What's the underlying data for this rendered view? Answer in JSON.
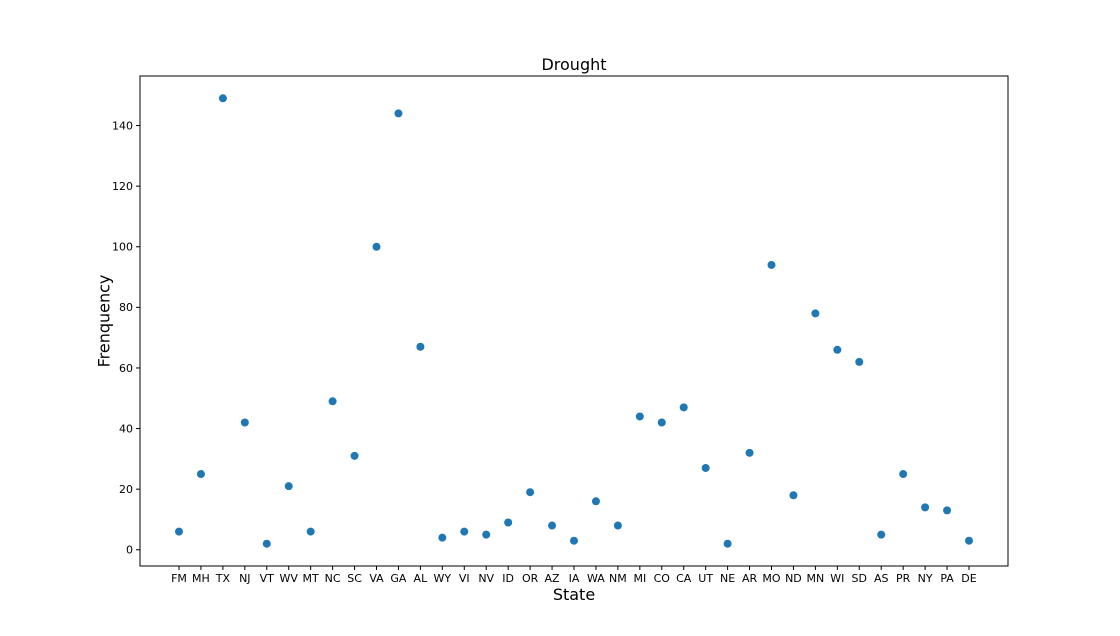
{
  "chart_data": {
    "type": "scatter",
    "title": "Drought",
    "xlabel": "State",
    "ylabel": "Frenquency",
    "categories": [
      "FM",
      "MH",
      "TX",
      "NJ",
      "VT",
      "WV",
      "MT",
      "NC",
      "SC",
      "VA",
      "GA",
      "AL",
      "WY",
      "VI",
      "NV",
      "ID",
      "OR",
      "AZ",
      "IA",
      "WA",
      "NM",
      "MI",
      "CO",
      "CA",
      "UT",
      "NE",
      "AR",
      "MO",
      "ND",
      "MN",
      "WI",
      "SD",
      "AS",
      "PR",
      "NY",
      "PA",
      "DE"
    ],
    "values": [
      6,
      25,
      149,
      42,
      2,
      21,
      6,
      49,
      31,
      100,
      144,
      67,
      4,
      6,
      5,
      9,
      19,
      8,
      3,
      16,
      8,
      44,
      42,
      47,
      27,
      2,
      32,
      94,
      18,
      78,
      66,
      62,
      5,
      25,
      14,
      13,
      3
    ],
    "yticks": [
      0,
      20,
      40,
      60,
      80,
      100,
      120,
      140
    ],
    "ylim": [
      -5.35,
      156.35
    ],
    "grid": false,
    "color": "#1f77b4"
  }
}
